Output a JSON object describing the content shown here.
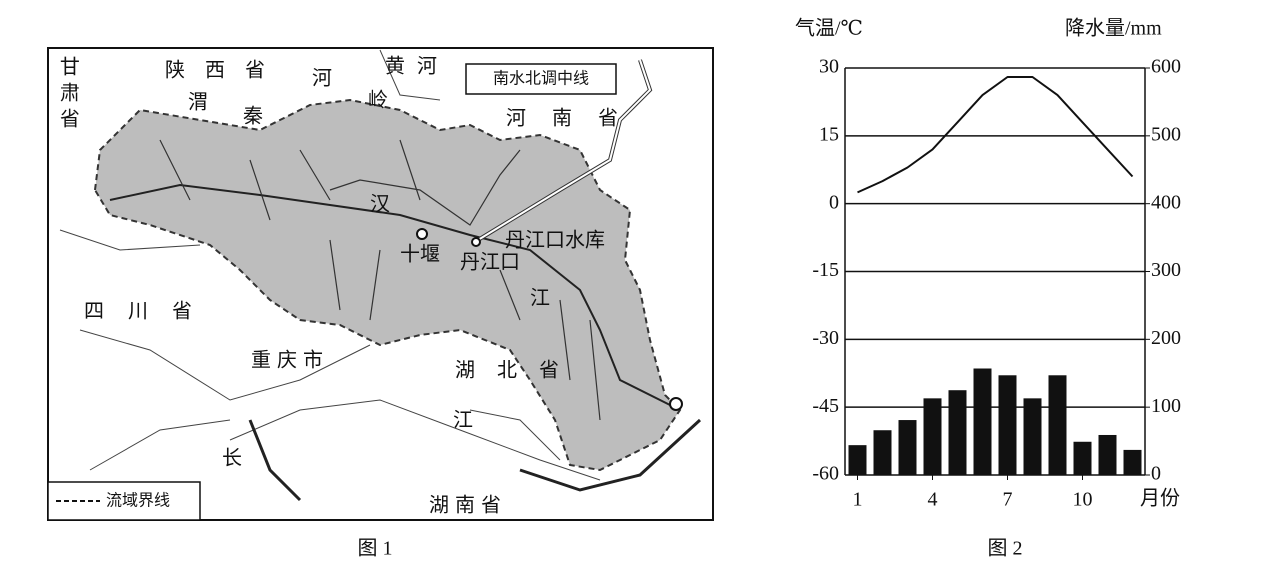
{
  "map": {
    "caption": "图 1",
    "legend": "流域界线",
    "box_label": "南水北调中线",
    "labels": [
      "甘肃省",
      "陕西省",
      "河",
      "黄河",
      "渭",
      "秦",
      "岭",
      "河南省",
      "汉",
      "十堰",
      "丹江口",
      "丹江口水库",
      "江",
      "四川省",
      "重庆市",
      "湖北省",
      "江",
      "长",
      "湖南省"
    ]
  },
  "chart_data": {
    "type": "combo",
    "caption": "图 2",
    "y_label": "气温/℃",
    "y2_label": "降水量/mm",
    "x_label": "月份",
    "x": [
      1,
      2,
      3,
      4,
      5,
      6,
      7,
      8,
      9,
      10,
      11,
      12
    ],
    "xlim": [
      0.5,
      12.5
    ],
    "xticks": [
      1,
      4,
      7,
      10
    ],
    "ylim": [
      -60,
      30
    ],
    "yticks": [
      -60,
      -45,
      -30,
      -15,
      0,
      15,
      30
    ],
    "y2lim": [
      0,
      600
    ],
    "y2ticks": [
      0,
      100,
      200,
      300,
      400,
      500,
      600
    ],
    "grid": true,
    "series": [
      {
        "type": "line",
        "color": "#111111",
        "values": [
          2.5,
          5,
          8,
          12,
          18,
          24,
          28,
          28,
          24,
          18,
          12,
          6
        ]
      },
      {
        "type": "bar",
        "axis": "y2",
        "color": "#111111",
        "values": [
          44,
          66,
          81,
          113,
          125,
          157,
          147,
          113,
          147,
          49,
          59,
          37
        ]
      }
    ]
  }
}
